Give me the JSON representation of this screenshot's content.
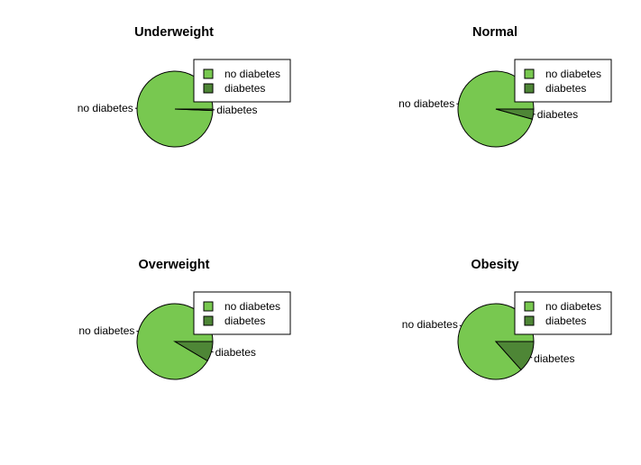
{
  "colors": {
    "no_diabetes": "#78C850",
    "diabetes": "#4E8636",
    "stroke": "#000000",
    "legend_border": "#000000"
  },
  "chart_data": [
    {
      "type": "pie",
      "title": "Underweight",
      "categories": [
        "no diabetes",
        "diabetes"
      ],
      "values": [
        99.4,
        0.6
      ],
      "legend": [
        "no diabetes",
        "diabetes"
      ],
      "legend_position": "top-right"
    },
    {
      "type": "pie",
      "title": "Normal",
      "categories": [
        "no diabetes",
        "diabetes"
      ],
      "values": [
        95.7,
        4.3
      ],
      "legend": [
        "no diabetes",
        "diabetes"
      ],
      "legend_position": "top-right"
    },
    {
      "type": "pie",
      "title": "Overweight",
      "categories": [
        "no diabetes",
        "diabetes"
      ],
      "values": [
        91.5,
        8.5
      ],
      "legend": [
        "no diabetes",
        "diabetes"
      ],
      "legend_position": "top-right"
    },
    {
      "type": "pie",
      "title": "Obesity",
      "categories": [
        "no diabetes",
        "diabetes"
      ],
      "values": [
        86.6,
        13.4
      ],
      "legend": [
        "no diabetes",
        "diabetes"
      ],
      "legend_position": "top-right"
    }
  ]
}
